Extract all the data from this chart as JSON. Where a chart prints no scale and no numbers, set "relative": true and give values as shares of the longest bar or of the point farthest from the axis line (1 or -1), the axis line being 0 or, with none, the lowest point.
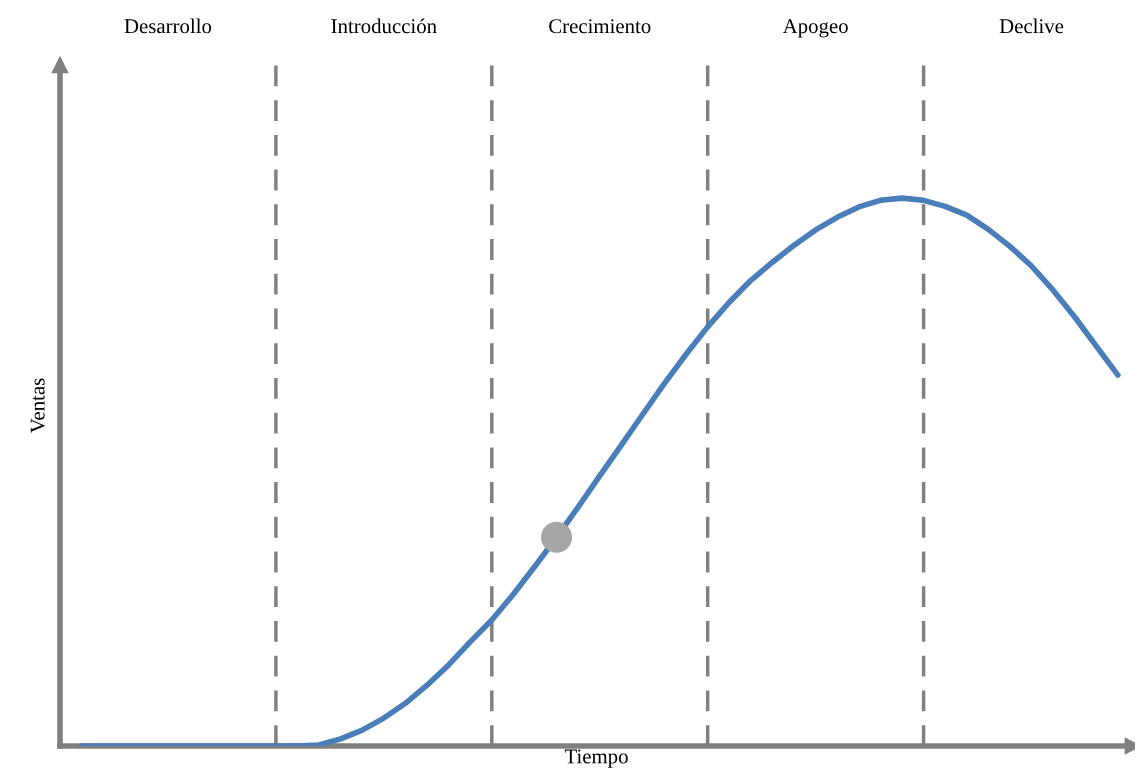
{
  "chart_data": {
    "type": "line",
    "relative": true,
    "xlabel": "Tiempo",
    "ylabel": "Ventas",
    "categories": [
      null,
      null,
      null,
      null,
      null,
      null,
      null,
      null,
      null,
      null,
      null,
      null,
      null,
      null,
      null,
      null,
      null,
      null,
      null,
      null,
      null,
      null,
      null,
      null,
      null,
      null,
      null,
      null,
      null,
      null,
      null,
      null,
      null,
      null,
      null,
      null,
      null,
      null,
      null,
      null,
      null,
      null,
      null,
      null,
      null,
      null,
      null,
      null,
      null,
      null,
      null
    ],
    "series": [
      {
        "color": "#4a7ebb",
        "values": [
          null,
          0,
          0,
          0,
          0,
          0,
          0,
          0,
          0,
          0,
          0,
          0,
          0.002,
          0.013,
          0.029,
          0.051,
          0.078,
          0.111,
          0.148,
          0.19,
          0.23,
          0.277,
          0.328,
          0.381,
          0.436,
          0.493,
          0.549,
          0.606,
          0.662,
          0.715,
          0.765,
          0.81,
          0.85,
          0.883,
          0.914,
          0.942,
          0.965,
          0.984,
          0.996,
          1.0,
          0.996,
          0.985,
          0.969,
          0.943,
          0.912,
          0.876,
          0.832,
          0.783,
          0.73,
          0.677,
          null
        ]
      }
    ],
    "annotations": [
      "Desarrollo",
      "Introducción",
      "Crecimiento",
      "Apogeo",
      "Declive"
    ],
    "grid": "x",
    "line_style": "solid",
    "legend": false
  }
}
